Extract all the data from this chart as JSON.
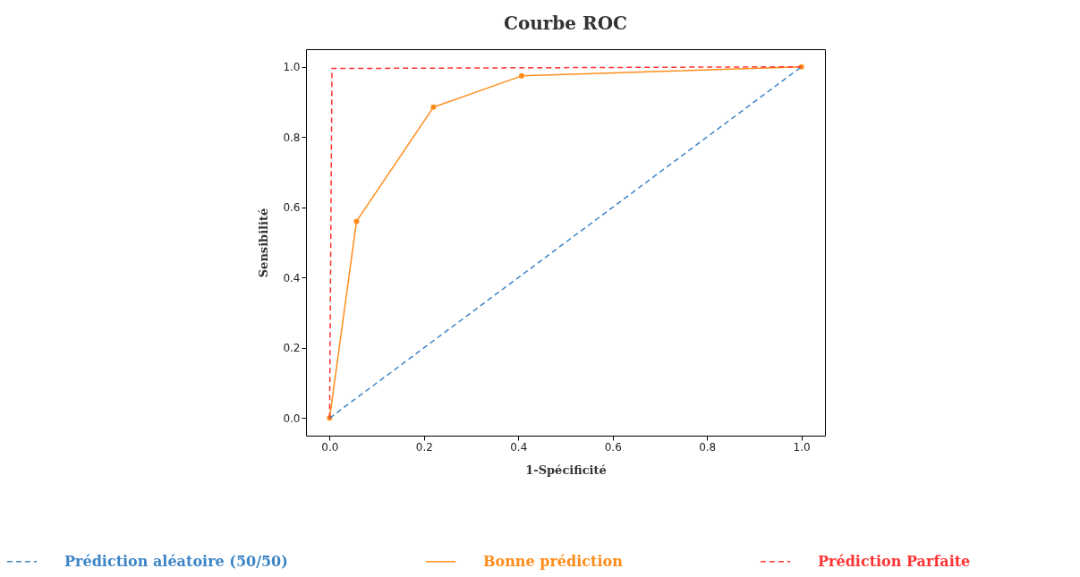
{
  "chart_data": {
    "type": "line",
    "title": "Courbe ROC",
    "xlabel": "1-Spécificité",
    "ylabel": "Sensibilité",
    "xlim": [
      -0.05,
      1.05
    ],
    "ylim": [
      -0.05,
      1.05
    ],
    "xticks": [
      {
        "value": 0,
        "label": "0.0"
      },
      {
        "value": 0.2,
        "label": "0.2"
      },
      {
        "value": 0.4,
        "label": "0.4"
      },
      {
        "value": 0.6,
        "label": "0.6"
      },
      {
        "value": 0.8,
        "label": "0.8"
      },
      {
        "value": 1,
        "label": "1.0"
      }
    ],
    "yticks": [
      {
        "value": 0,
        "label": "0.0"
      },
      {
        "value": 0.2,
        "label": "0.2"
      },
      {
        "value": 0.4,
        "label": "0.4"
      },
      {
        "value": 0.6,
        "label": "0.6"
      },
      {
        "value": 0.8,
        "label": "0.8"
      },
      {
        "value": 1,
        "label": "1.0"
      }
    ],
    "grid": false,
    "legend": "bottom",
    "series": [
      {
        "name": "Prédiction aléatoire (50/50)",
        "color": "#3d85c6",
        "line_style": "dashed",
        "marker": "none",
        "x": [
          0,
          1
        ],
        "values": [
          0,
          1
        ]
      },
      {
        "name": "Bonne prédiction",
        "color": "#ff8c1a",
        "line_style": "solid",
        "marker": "circle",
        "x": [
          0,
          0.057,
          0.22,
          0.407,
          1
        ],
        "values": [
          0,
          0.56,
          0.885,
          0.974,
          1
        ]
      },
      {
        "name": "Prédiction Parfaite",
        "color": "#ff3333",
        "line_style": "dashed",
        "marker": "none",
        "x": [
          0,
          0.005,
          1
        ],
        "values": [
          0,
          0.995,
          1
        ]
      }
    ]
  }
}
